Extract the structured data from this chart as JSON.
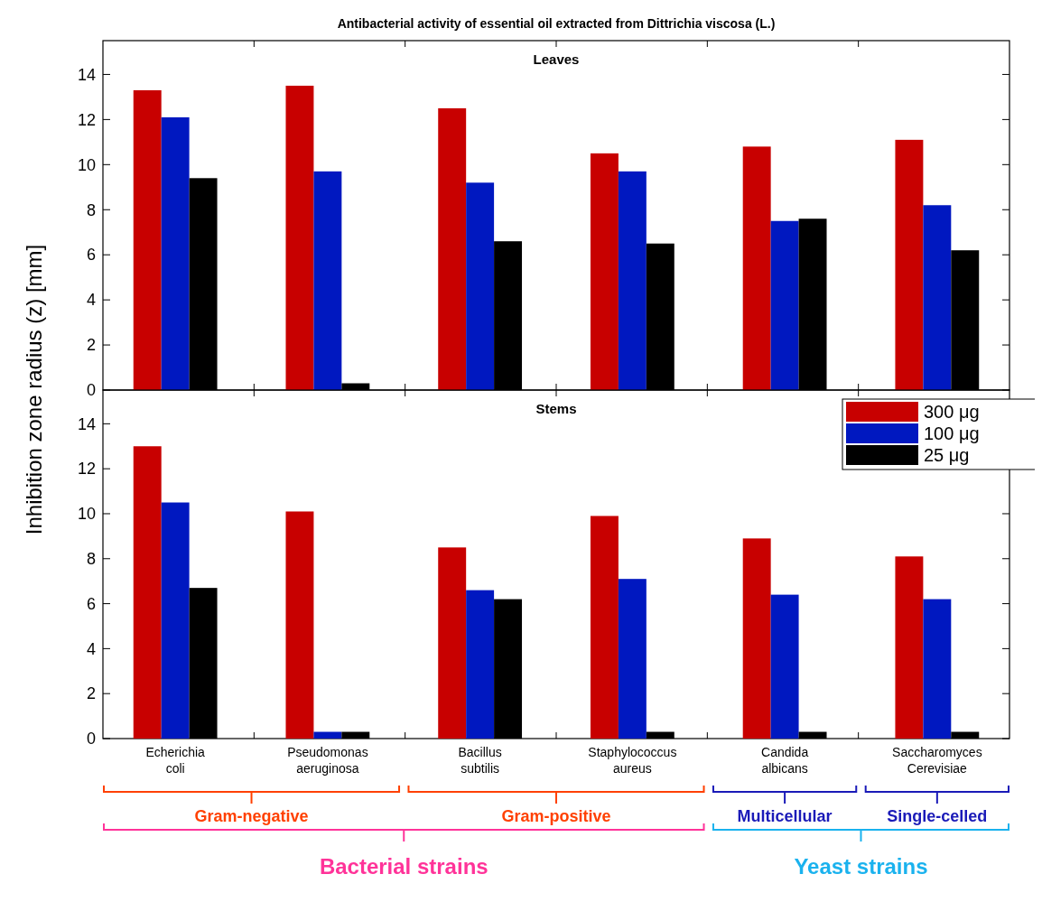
{
  "chart_data": [
    {
      "type": "bar",
      "title": "Antibacterial activity of essential oil extracted from Dittrichia viscosa (L.)",
      "subtitle": "Leaves",
      "ylabel": "Inhibition zone radius (z)  [mm]",
      "categories": [
        null,
        null,
        null,
        null,
        null,
        null
      ],
      "ylim": [
        0,
        15.5
      ],
      "yticks": [
        0,
        2,
        4,
        6,
        8,
        10,
        12,
        14
      ],
      "tick_labels": "y",
      "series": [
        {
          "color": "#c80000",
          "values": [
            13.3,
            13.5,
            12.5,
            10.5,
            10.8,
            11.1
          ]
        },
        {
          "color": "#0018c0",
          "values": [
            12.1,
            9.7,
            9.2,
            9.7,
            7.5,
            8.2
          ]
        },
        {
          "color": "#000000",
          "values": [
            9.4,
            0.3,
            6.6,
            6.5,
            7.6,
            6.2
          ]
        }
      ]
    },
    {
      "type": "bar",
      "subtitle": "Stems",
      "categories": [
        "Echerichia coli",
        "Pseudomonas aeruginosa",
        "Bacillus subtilis",
        "Staphylococcus aureus",
        "Candida albicans",
        "Saccharomyces Cerevisiae"
      ],
      "ylim": [
        0,
        15.5
      ],
      "yticks": [
        0,
        2,
        4,
        6,
        8,
        10,
        12,
        14
      ],
      "legend": "top right",
      "annotations": [
        "Gram-negative",
        "Gram-positive",
        "Multicellular",
        "Single-celled",
        "Bacterial strains",
        "Yeast strains"
      ],
      "series": [
        {
          "name": "300 μg",
          "color": "#c80000",
          "values": [
            13.0,
            10.1,
            8.5,
            9.9,
            8.9,
            8.1
          ]
        },
        {
          "name": "100 μg",
          "color": "#0018c0",
          "values": [
            10.5,
            0.3,
            6.6,
            7.1,
            6.4,
            6.2
          ]
        },
        {
          "name": "25 μg",
          "color": "#000000",
          "values": [
            6.7,
            0.3,
            6.2,
            0.3,
            0.3,
            0.3
          ]
        }
      ]
    }
  ]
}
